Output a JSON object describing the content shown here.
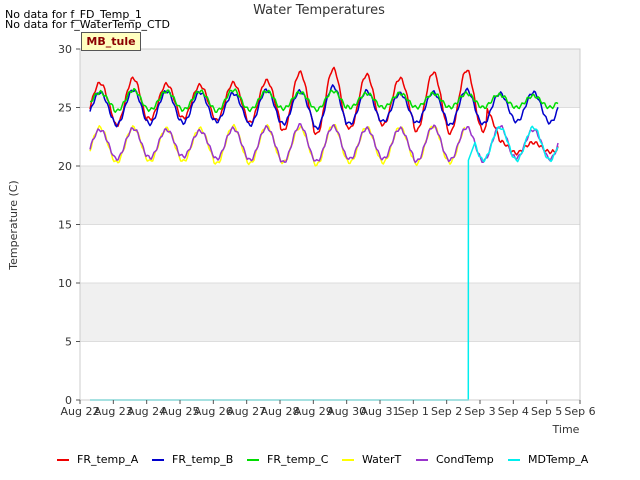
{
  "no_data_messages": [
    "No data for f_FD_Temp_1",
    "No data for f_WaterTemp_CTD"
  ],
  "badge": "MB_tule",
  "chart_data": {
    "type": "line",
    "title": "Water Temperatures",
    "xlabel": "Time",
    "ylabel": "Temperature (C)",
    "ylim": [
      0,
      30
    ],
    "xlim": [
      0,
      15
    ],
    "yticks": [
      0,
      5,
      10,
      15,
      20,
      25,
      30
    ],
    "x_ticks": [
      "Aug 22",
      "Aug 23",
      "Aug 24",
      "Aug 25",
      "Aug 26",
      "Aug 27",
      "Aug 28",
      "Aug 29",
      "Aug 30",
      "Aug 31",
      "Sep 1",
      "Sep 2",
      "Sep 3",
      "Sep 4",
      "Sep 5",
      "Sep 6"
    ],
    "x_tick_positions": [
      0,
      1,
      2,
      3,
      4,
      5,
      6,
      7,
      8,
      9,
      10,
      11,
      12,
      13,
      14,
      15
    ],
    "shaded_bands": [
      [
        20,
        25
      ],
      [
        10,
        15
      ],
      [
        0,
        5
      ]
    ],
    "series": [
      {
        "name": "FR_temp_A",
        "color": "#ee0000",
        "width": 1.5,
        "gen": {
          "type": "diurnal",
          "start": 0.3,
          "end": 14.35,
          "mid": 25.5,
          "amps": [
            1.6,
            2.0,
            1.5,
            1.4,
            1.6,
            1.8,
            2.5,
            2.8,
            2.3,
            2.0,
            2.5,
            2.7,
            2.5
          ],
          "drop": {
            "at": 12.2,
            "mid": 21.6,
            "amps": [
              0.5,
              0.4,
              0.6
            ]
          }
        }
      },
      {
        "name": "FR_temp_B",
        "color": "#0000cc",
        "width": 1.5,
        "gen": {
          "type": "diurnal",
          "start": 0.3,
          "end": 14.35,
          "mid": 25.0,
          "amps": [
            1.3,
            1.5,
            1.4,
            1.3,
            1.2,
            1.5,
            1.4,
            1.8,
            1.4,
            1.2,
            1.3,
            1.5,
            1.4
          ],
          "drop": {
            "at": 12.3,
            "mid": 25.0,
            "amps": [
              1.2,
              1.3,
              1.2
            ]
          }
        }
      },
      {
        "name": "FR_temp_C",
        "color": "#00dd00",
        "width": 1.5,
        "gen": {
          "type": "diurnal",
          "start": 0.3,
          "end": 14.35,
          "mid": 25.6,
          "amps": [
            0.7,
            0.9,
            0.8,
            0.8,
            0.9,
            0.8,
            0.7,
            0.8,
            0.6,
            0.6,
            0.6,
            0.6,
            0.6
          ],
          "drop": {
            "at": 12.5,
            "mid": 25.5,
            "amps": [
              0.5,
              0.5,
              0.5
            ]
          }
        }
      },
      {
        "name": "WaterT",
        "color": "#ffff00",
        "width": 1.5,
        "gen": {
          "type": "diurnal",
          "start": 0.3,
          "end": 11.55,
          "mid": 21.8,
          "amps": [
            1.5,
            1.5,
            1.4,
            1.4,
            1.6,
            1.6,
            1.5,
            1.7,
            1.5,
            1.5,
            1.6,
            1.5
          ]
        }
      },
      {
        "name": "CondTemp",
        "color": "#9933cc",
        "width": 1.5,
        "gen": {
          "type": "diurnal",
          "start": 0.3,
          "end": 14.35,
          "mid": 21.9,
          "amps": [
            1.2,
            1.3,
            1.2,
            1.1,
            1.3,
            1.4,
            1.6,
            1.5,
            1.3,
            1.3,
            1.5,
            1.4,
            1.5,
            1.2,
            1.3
          ]
        }
      },
      {
        "name": "MDTemp_A",
        "color": "#00eeee",
        "width": 1.5,
        "gen": {
          "type": "mdtemp",
          "start": 0.3,
          "jump": 11.65,
          "end": 14.35,
          "after_mid": 21.9,
          "after_amps": [
            1.5,
            1.3,
            1.4
          ]
        }
      }
    ]
  }
}
